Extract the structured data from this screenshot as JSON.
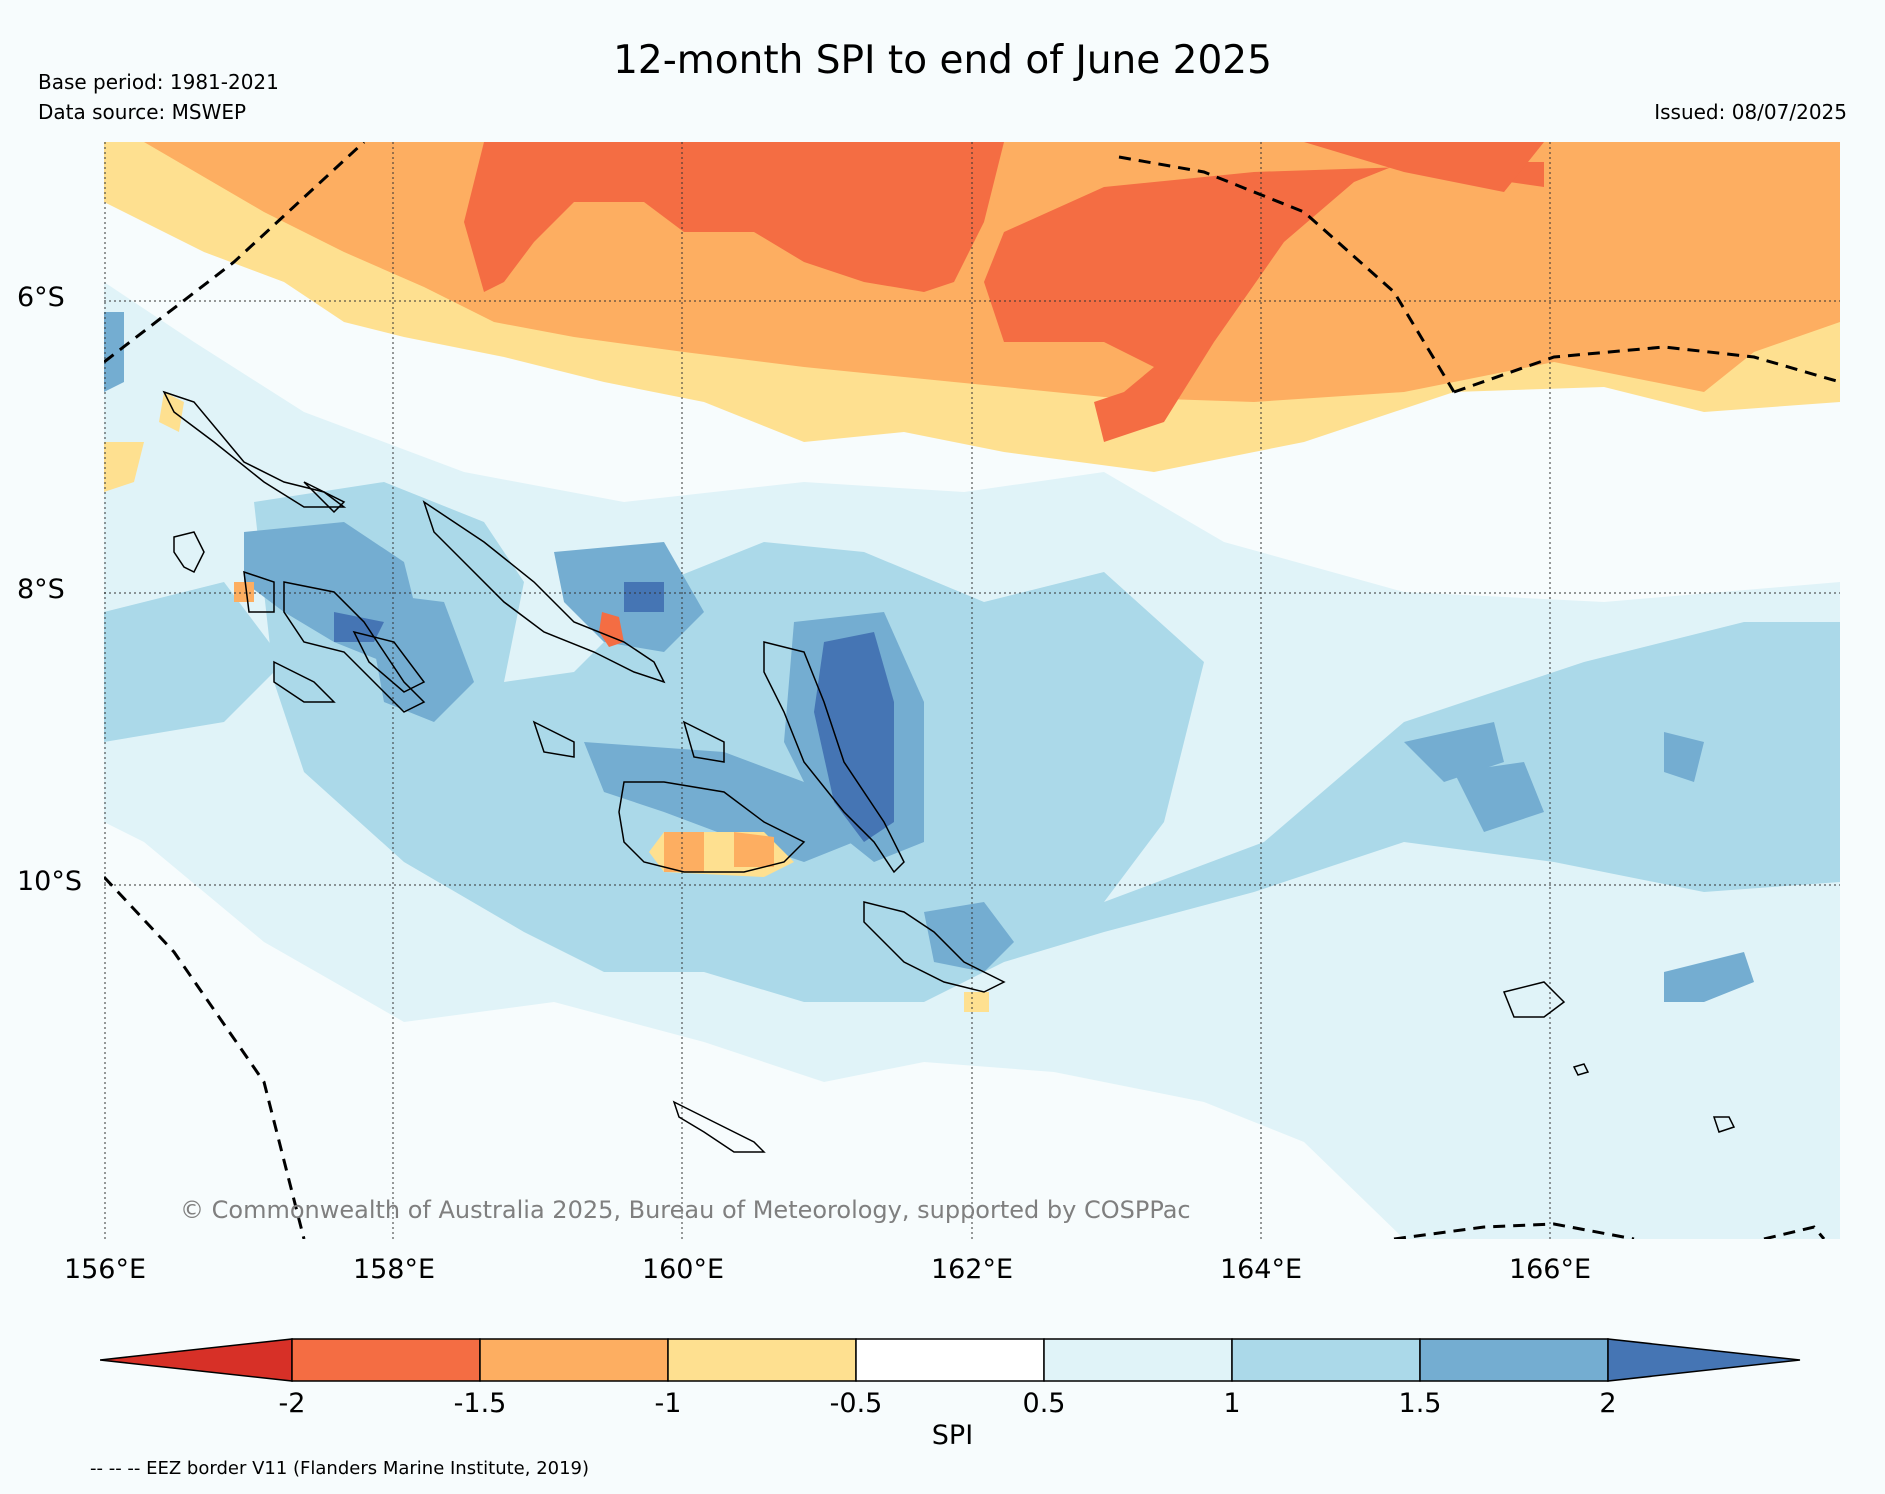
{
  "header": {
    "title": "12-month SPI to end of June 2025",
    "base_period": "Base period: 1981-2021",
    "data_source": "Data source: MSWEP",
    "issued": "Issued: 08/07/2025"
  },
  "map": {
    "lat_labels": [
      "6°S",
      "8°S",
      "10°S"
    ],
    "lon_labels": [
      "156°E",
      "158°E",
      "160°E",
      "162°E",
      "164°E",
      "166°E"
    ],
    "copyright": "© Commonwealth of Australia 2025, Bureau of Meteorology, supported by COSPPac",
    "colors": {
      "lt_-2": "#d73027",
      "-2_-1.5": "#f46d43",
      "-1.5_-1": "#fdae61",
      "-1_-0.5": "#fee090",
      "-0.5_0.5": "#ffffff",
      "0.5_1": "#e0f3f8",
      "1_1.5": "#abd9e9",
      "1.5_2": "#74add1",
      "gt_2": "#4575b4",
      "background": "#f7fcfd"
    }
  },
  "colorbar": {
    "label": "SPI",
    "ticks": [
      "-2",
      "-1.5",
      "-1",
      "-0.5",
      "0.5",
      "1",
      "1.5",
      "2"
    ]
  },
  "footnote": "-- -- -- EEZ border V11 (Flanders Marine Institute, 2019)"
}
